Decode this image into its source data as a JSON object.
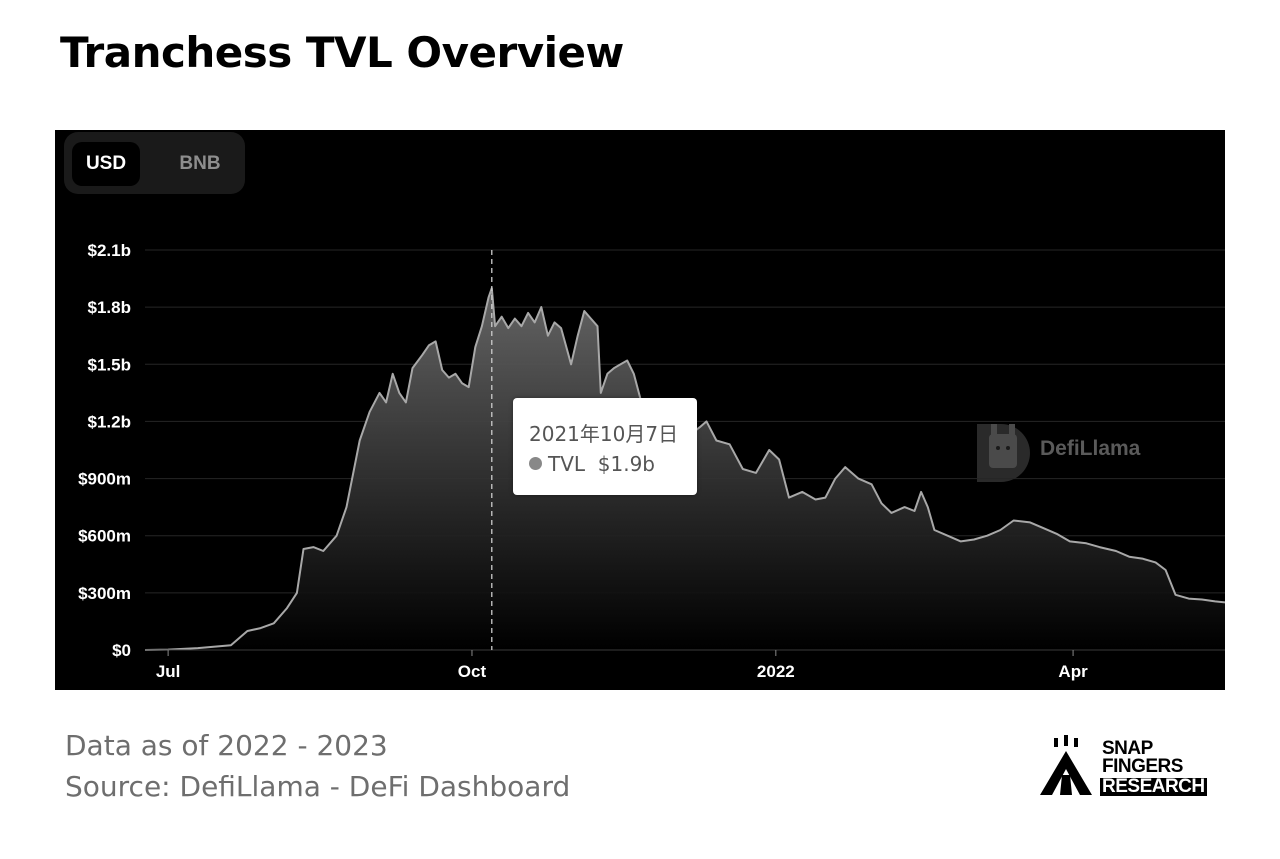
{
  "title": "Tranchess TVL Overview",
  "toggle": {
    "usd_label": "USD",
    "bnb_label": "BNB",
    "selected": "USD"
  },
  "tooltip": {
    "date": "2021年10月7日",
    "series": "TVL",
    "value": "$1.9b"
  },
  "watermark": {
    "text": "DefiLlama"
  },
  "footer": {
    "line1": "Data as of 2022 - 2023",
    "line2": "Source: DefiLlama - DeFi Dashboard"
  },
  "brand": {
    "line1": "SNAP",
    "line2": "FINGERS",
    "line3": "RESEARCH"
  },
  "colors": {
    "panel_bg": "#000000",
    "line": "#a8a8a8",
    "grid": "#262626",
    "axis_text": "#ffffff"
  },
  "chart_data": {
    "type": "area",
    "series": [
      {
        "points": [
          [
            "2021-06-24",
            0
          ],
          [
            "2021-07-01",
            2
          ],
          [
            "2021-07-10",
            10
          ],
          [
            "2021-07-20",
            25
          ],
          [
            "2021-07-25",
            100
          ],
          [
            "2021-07-29",
            115
          ],
          [
            "2021-08-02",
            140
          ],
          [
            "2021-08-06",
            220
          ],
          [
            "2021-08-09",
            300
          ],
          [
            "2021-08-11",
            530
          ],
          [
            "2021-08-14",
            540
          ],
          [
            "2021-08-17",
            520
          ],
          [
            "2021-08-21",
            600
          ],
          [
            "2021-08-24",
            750
          ],
          [
            "2021-08-28",
            1100
          ],
          [
            "2021-08-31",
            1250
          ],
          [
            "2021-09-03",
            1350
          ],
          [
            "2021-09-05",
            1300
          ],
          [
            "2021-09-07",
            1450
          ],
          [
            "2021-09-09",
            1350
          ],
          [
            "2021-09-11",
            1300
          ],
          [
            "2021-09-13",
            1480
          ],
          [
            "2021-09-16",
            1550
          ],
          [
            "2021-09-18",
            1600
          ],
          [
            "2021-09-20",
            1620
          ],
          [
            "2021-09-22",
            1470
          ],
          [
            "2021-09-24",
            1430
          ],
          [
            "2021-09-26",
            1450
          ],
          [
            "2021-09-28",
            1400
          ],
          [
            "2021-09-30",
            1380
          ],
          [
            "2021-10-02",
            1590
          ],
          [
            "2021-10-04",
            1700
          ],
          [
            "2021-10-06",
            1850
          ],
          [
            "2021-10-07",
            1900
          ],
          [
            "2021-10-08",
            1700
          ],
          [
            "2021-10-10",
            1750
          ],
          [
            "2021-10-12",
            1690
          ],
          [
            "2021-10-14",
            1740
          ],
          [
            "2021-10-16",
            1700
          ],
          [
            "2021-10-18",
            1770
          ],
          [
            "2021-10-20",
            1720
          ],
          [
            "2021-10-22",
            1800
          ],
          [
            "2021-10-24",
            1650
          ],
          [
            "2021-10-26",
            1720
          ],
          [
            "2021-10-28",
            1690
          ],
          [
            "2021-10-31",
            1500
          ],
          [
            "2021-11-02",
            1650
          ],
          [
            "2021-11-04",
            1780
          ],
          [
            "2021-11-06",
            1740
          ],
          [
            "2021-11-08",
            1700
          ],
          [
            "2021-11-09",
            1350
          ],
          [
            "2021-11-11",
            1450
          ],
          [
            "2021-11-13",
            1480
          ],
          [
            "2021-11-15",
            1500
          ],
          [
            "2021-11-17",
            1520
          ],
          [
            "2021-11-19",
            1450
          ],
          [
            "2021-11-21",
            1320
          ],
          [
            "2021-11-24",
            1160
          ],
          [
            "2021-11-28",
            1110
          ],
          [
            "2021-12-02",
            1150
          ],
          [
            "2021-12-06",
            1130
          ],
          [
            "2021-12-09",
            1170
          ],
          [
            "2021-12-11",
            1200
          ],
          [
            "2021-12-14",
            1100
          ],
          [
            "2021-12-18",
            1080
          ],
          [
            "2021-12-22",
            950
          ],
          [
            "2021-12-26",
            930
          ],
          [
            "2021-12-30",
            1050
          ],
          [
            "2022-01-02",
            1000
          ],
          [
            "2022-01-05",
            800
          ],
          [
            "2022-01-09",
            830
          ],
          [
            "2022-01-13",
            790
          ],
          [
            "2022-01-16",
            800
          ],
          [
            "2022-01-19",
            900
          ],
          [
            "2022-01-22",
            960
          ],
          [
            "2022-01-26",
            900
          ],
          [
            "2022-01-30",
            870
          ],
          [
            "2022-02-02",
            770
          ],
          [
            "2022-02-05",
            720
          ],
          [
            "2022-02-09",
            750
          ],
          [
            "2022-02-12",
            730
          ],
          [
            "2022-02-14",
            830
          ],
          [
            "2022-02-16",
            750
          ],
          [
            "2022-02-18",
            630
          ],
          [
            "2022-02-22",
            600
          ],
          [
            "2022-02-26",
            570
          ],
          [
            "2022-03-02",
            580
          ],
          [
            "2022-03-06",
            600
          ],
          [
            "2022-03-10",
            630
          ],
          [
            "2022-03-14",
            680
          ],
          [
            "2022-03-19",
            670
          ],
          [
            "2022-03-23",
            640
          ],
          [
            "2022-03-27",
            610
          ],
          [
            "2022-03-31",
            570
          ],
          [
            "2022-04-05",
            560
          ],
          [
            "2022-04-09",
            540
          ],
          [
            "2022-04-14",
            520
          ],
          [
            "2022-04-18",
            490
          ],
          [
            "2022-04-22",
            480
          ],
          [
            "2022-04-26",
            460
          ],
          [
            "2022-04-29",
            420
          ],
          [
            "2022-05-02",
            290
          ],
          [
            "2022-05-06",
            270
          ],
          [
            "2022-05-10",
            265
          ],
          [
            "2022-05-14",
            255
          ],
          [
            "2022-05-17",
            250
          ]
        ]
      }
    ],
    "x_ticks": [
      {
        "label": "Jul",
        "date": "2021-07-01"
      },
      {
        "label": "Oct",
        "date": "2021-10-01"
      },
      {
        "label": "2022",
        "date": "2022-01-01",
        "bold": true
      },
      {
        "label": "Apr",
        "date": "2022-04-01"
      }
    ],
    "y_ticks": [
      {
        "label": "$0",
        "value": 0
      },
      {
        "label": "$300m",
        "value": 300
      },
      {
        "label": "$600m",
        "value": 600
      },
      {
        "label": "$900m",
        "value": 900
      },
      {
        "label": "$1.2b",
        "value": 1200
      },
      {
        "label": "$1.5b",
        "value": 1500
      },
      {
        "label": "$1.8b",
        "value": 1800
      },
      {
        "label": "$2.1b",
        "value": 2100
      }
    ],
    "y_unit": "millions USD",
    "ylim": [
      0,
      2100
    ],
    "xlim": [
      "2021-06-24",
      "2022-05-17"
    ],
    "hover_date": "2021-10-07",
    "grid": true
  }
}
